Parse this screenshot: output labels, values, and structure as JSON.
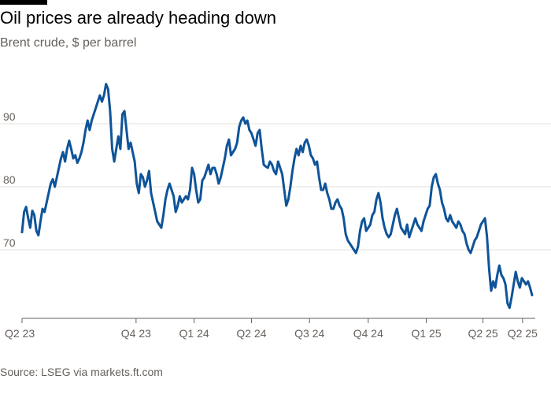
{
  "colors": {
    "line": "#0f5499",
    "grid": "#e6e0da",
    "text_muted": "#66605c",
    "accent_bar": "#000000"
  },
  "chart_data": {
    "type": "line",
    "title": "Oil prices are already heading down",
    "subtitle": "Brent crude, $ per barrel",
    "source": "Source: LSEG via markets.ft.com",
    "ylim": [
      59,
      99
    ],
    "yticks": [
      70,
      80,
      90
    ],
    "xlim": [
      0,
      100
    ],
    "xticks": [
      {
        "label": "Q2 23",
        "x": 0
      },
      {
        "label": "Q4 23",
        "x": 16.7
      },
      {
        "label": "Q1 24",
        "x": 25.2
      },
      {
        "label": "Q2 24",
        "x": 33.6
      },
      {
        "label": "Q3 24",
        "x": 42.1
      },
      {
        "label": "Q4 24",
        "x": 50.7
      },
      {
        "label": "Q1 25",
        "x": 59.2
      },
      {
        "label": "Q2 25",
        "x": 67.5
      },
      {
        "label": "Q2 25",
        "x": 73.3
      }
    ],
    "series": [
      {
        "points": [
          [
            0,
            72.8
          ],
          [
            0.3,
            76.0
          ],
          [
            0.6,
            76.8
          ],
          [
            0.9,
            75.0
          ],
          [
            1.2,
            73.5
          ],
          [
            1.5,
            76.2
          ],
          [
            1.8,
            75.5
          ],
          [
            2.1,
            73.0
          ],
          [
            2.4,
            72.3
          ],
          [
            2.7,
            74.5
          ],
          [
            3.0,
            76.5
          ],
          [
            3.3,
            76.0
          ],
          [
            3.6,
            77.5
          ],
          [
            3.9,
            79.0
          ],
          [
            4.2,
            80.5
          ],
          [
            4.5,
            81.2
          ],
          [
            4.8,
            80.0
          ],
          [
            5.1,
            81.5
          ],
          [
            5.4,
            83.0
          ],
          [
            5.7,
            84.5
          ],
          [
            6.0,
            85.5
          ],
          [
            6.3,
            84.0
          ],
          [
            6.6,
            86.0
          ],
          [
            6.9,
            87.3
          ],
          [
            7.2,
            86.0
          ],
          [
            7.5,
            84.5
          ],
          [
            7.8,
            85.0
          ],
          [
            8.1,
            83.8
          ],
          [
            8.4,
            84.5
          ],
          [
            8.7,
            85.5
          ],
          [
            9.0,
            87.0
          ],
          [
            9.3,
            89.0
          ],
          [
            9.6,
            90.5
          ],
          [
            9.9,
            89.0
          ],
          [
            10.2,
            90.5
          ],
          [
            10.5,
            91.5
          ],
          [
            10.8,
            92.5
          ],
          [
            11.1,
            93.5
          ],
          [
            11.4,
            94.5
          ],
          [
            11.7,
            93.5
          ],
          [
            12.0,
            94.5
          ],
          [
            12.3,
            96.3
          ],
          [
            12.6,
            95.5
          ],
          [
            12.9,
            92.0
          ],
          [
            13.2,
            86.0
          ],
          [
            13.5,
            84.0
          ],
          [
            13.8,
            86.0
          ],
          [
            14.1,
            88.0
          ],
          [
            14.4,
            86.0
          ],
          [
            14.7,
            91.5
          ],
          [
            15.0,
            92.0
          ],
          [
            15.3,
            89.0
          ],
          [
            15.6,
            86.0
          ],
          [
            15.9,
            87.0
          ],
          [
            16.2,
            85.5
          ],
          [
            16.5,
            84.0
          ],
          [
            16.8,
            80.5
          ],
          [
            17.1,
            79.0
          ],
          [
            17.4,
            82.0
          ],
          [
            17.7,
            81.5
          ],
          [
            18.0,
            80.0
          ],
          [
            18.3,
            81.0
          ],
          [
            18.6,
            82.5
          ],
          [
            18.9,
            79.0
          ],
          [
            19.2,
            77.5
          ],
          [
            19.5,
            76.0
          ],
          [
            19.8,
            74.5
          ],
          [
            20.1,
            74.0
          ],
          [
            20.4,
            73.5
          ],
          [
            20.7,
            75.5
          ],
          [
            21.0,
            78.0
          ],
          [
            21.3,
            79.5
          ],
          [
            21.6,
            80.5
          ],
          [
            21.9,
            79.5
          ],
          [
            22.2,
            78.5
          ],
          [
            22.5,
            76.0
          ],
          [
            22.8,
            77.0
          ],
          [
            23.1,
            78.5
          ],
          [
            23.4,
            77.5
          ],
          [
            23.7,
            78.0
          ],
          [
            24.0,
            78.5
          ],
          [
            24.3,
            78.0
          ],
          [
            24.6,
            79.5
          ],
          [
            24.9,
            83.0
          ],
          [
            25.2,
            82.0
          ],
          [
            25.5,
            79.5
          ],
          [
            25.8,
            77.5
          ],
          [
            26.1,
            78.0
          ],
          [
            26.4,
            81.0
          ],
          [
            26.7,
            81.5
          ],
          [
            27.0,
            82.5
          ],
          [
            27.3,
            83.5
          ],
          [
            27.6,
            82.0
          ],
          [
            27.9,
            83.0
          ],
          [
            28.2,
            83.0
          ],
          [
            28.5,
            82.0
          ],
          [
            28.8,
            80.5
          ],
          [
            29.1,
            81.5
          ],
          [
            29.4,
            83.0
          ],
          [
            29.7,
            84.5
          ],
          [
            30.0,
            86.5
          ],
          [
            30.3,
            87.5
          ],
          [
            30.6,
            85.0
          ],
          [
            30.9,
            85.5
          ],
          [
            31.2,
            86.0
          ],
          [
            31.5,
            87.0
          ],
          [
            31.8,
            89.5
          ],
          [
            32.1,
            90.5
          ],
          [
            32.4,
            91.0
          ],
          [
            32.7,
            90.0
          ],
          [
            33.0,
            90.5
          ],
          [
            33.3,
            89.0
          ],
          [
            33.6,
            88.5
          ],
          [
            33.9,
            87.5
          ],
          [
            34.2,
            86.5
          ],
          [
            34.5,
            88.5
          ],
          [
            34.8,
            89.0
          ],
          [
            35.1,
            86.0
          ],
          [
            35.4,
            83.5
          ],
          [
            35.7,
            83.2
          ],
          [
            36.0,
            83.0
          ],
          [
            36.3,
            84.0
          ],
          [
            36.6,
            83.5
          ],
          [
            36.9,
            82.5
          ],
          [
            37.2,
            82.0
          ],
          [
            37.5,
            84.0
          ],
          [
            37.8,
            83.0
          ],
          [
            38.1,
            82.0
          ],
          [
            38.4,
            79.5
          ],
          [
            38.7,
            77.0
          ],
          [
            39.0,
            78.0
          ],
          [
            39.3,
            80.0
          ],
          [
            39.6,
            82.5
          ],
          [
            39.9,
            84.5
          ],
          [
            40.2,
            86.0
          ],
          [
            40.5,
            85.0
          ],
          [
            40.8,
            86.5
          ],
          [
            41.1,
            85.5
          ],
          [
            41.4,
            87.0
          ],
          [
            41.7,
            87.5
          ],
          [
            42.0,
            86.5
          ],
          [
            42.3,
            85.0
          ],
          [
            42.6,
            84.5
          ],
          [
            42.9,
            83.5
          ],
          [
            43.2,
            84.0
          ],
          [
            43.5,
            81.5
          ],
          [
            43.8,
            79.5
          ],
          [
            44.1,
            79.5
          ],
          [
            44.4,
            80.5
          ],
          [
            44.7,
            79.0
          ],
          [
            45.0,
            78.0
          ],
          [
            45.3,
            76.5
          ],
          [
            45.6,
            76.5
          ],
          [
            45.9,
            77.5
          ],
          [
            46.2,
            78.0
          ],
          [
            46.5,
            77.0
          ],
          [
            46.8,
            76.5
          ],
          [
            47.1,
            75.0
          ],
          [
            47.4,
            72.5
          ],
          [
            47.7,
            71.5
          ],
          [
            48.0,
            71.0
          ],
          [
            48.3,
            70.5
          ],
          [
            48.6,
            70.0
          ],
          [
            48.9,
            69.5
          ],
          [
            49.2,
            70.5
          ],
          [
            49.5,
            73.0
          ],
          [
            49.8,
            74.5
          ],
          [
            50.1,
            75.0
          ],
          [
            50.4,
            73.0
          ],
          [
            50.7,
            73.5
          ],
          [
            51.0,
            74.0
          ],
          [
            51.3,
            75.5
          ],
          [
            51.6,
            76.0
          ],
          [
            51.9,
            78.0
          ],
          [
            52.2,
            79.0
          ],
          [
            52.5,
            77.5
          ],
          [
            52.8,
            75.0
          ],
          [
            53.1,
            73.5
          ],
          [
            53.4,
            72.5
          ],
          [
            53.7,
            72.0
          ],
          [
            54.0,
            72.5
          ],
          [
            54.3,
            74.0
          ],
          [
            54.6,
            75.5
          ],
          [
            54.9,
            76.5
          ],
          [
            55.2,
            75.0
          ],
          [
            55.5,
            73.5
          ],
          [
            55.8,
            73.0
          ],
          [
            56.1,
            72.5
          ],
          [
            56.4,
            74.0
          ],
          [
            56.7,
            72.0
          ],
          [
            57.0,
            73.0
          ],
          [
            57.3,
            74.0
          ],
          [
            57.6,
            75.0
          ],
          [
            57.9,
            74.0
          ],
          [
            58.2,
            73.5
          ],
          [
            58.5,
            73.0
          ],
          [
            58.8,
            74.5
          ],
          [
            59.1,
            75.5
          ],
          [
            59.4,
            76.5
          ],
          [
            59.7,
            77.0
          ],
          [
            60.0,
            80.0
          ],
          [
            60.3,
            81.5
          ],
          [
            60.6,
            82.0
          ],
          [
            60.9,
            80.5
          ],
          [
            61.2,
            79.5
          ],
          [
            61.5,
            77.5
          ],
          [
            61.8,
            76.5
          ],
          [
            62.1,
            75.0
          ],
          [
            62.4,
            74.5
          ],
          [
            62.7,
            75.5
          ],
          [
            63.0,
            74.5
          ],
          [
            63.3,
            74.0
          ],
          [
            63.6,
            73.5
          ],
          [
            63.9,
            74.5
          ],
          [
            64.2,
            74.0
          ],
          [
            64.5,
            73.0
          ],
          [
            64.8,
            72.5
          ],
          [
            65.1,
            71.0
          ],
          [
            65.4,
            70.0
          ],
          [
            65.7,
            69.5
          ],
          [
            66.0,
            70.5
          ],
          [
            66.3,
            71.5
          ],
          [
            66.6,
            72.0
          ],
          [
            66.9,
            73.0
          ],
          [
            67.2,
            74.0
          ],
          [
            67.5,
            74.5
          ],
          [
            67.8,
            75.0
          ],
          [
            68.1,
            72.0
          ],
          [
            68.4,
            67.0
          ],
          [
            68.7,
            63.5
          ],
          [
            69.0,
            65.0
          ],
          [
            69.3,
            64.0
          ],
          [
            69.6,
            66.0
          ],
          [
            69.9,
            67.5
          ],
          [
            70.2,
            66.0
          ],
          [
            70.5,
            65.5
          ],
          [
            70.8,
            64.5
          ],
          [
            71.1,
            61.5
          ],
          [
            71.4,
            60.8
          ],
          [
            71.7,
            62.5
          ],
          [
            72.0,
            64.5
          ],
          [
            72.3,
            66.5
          ],
          [
            72.6,
            65.0
          ],
          [
            72.9,
            64.0
          ],
          [
            73.2,
            65.5
          ],
          [
            73.5,
            65.0
          ],
          [
            73.8,
            64.5
          ],
          [
            74.1,
            65.0
          ],
          [
            74.4,
            64.0
          ],
          [
            74.7,
            62.8
          ]
        ]
      }
    ]
  }
}
